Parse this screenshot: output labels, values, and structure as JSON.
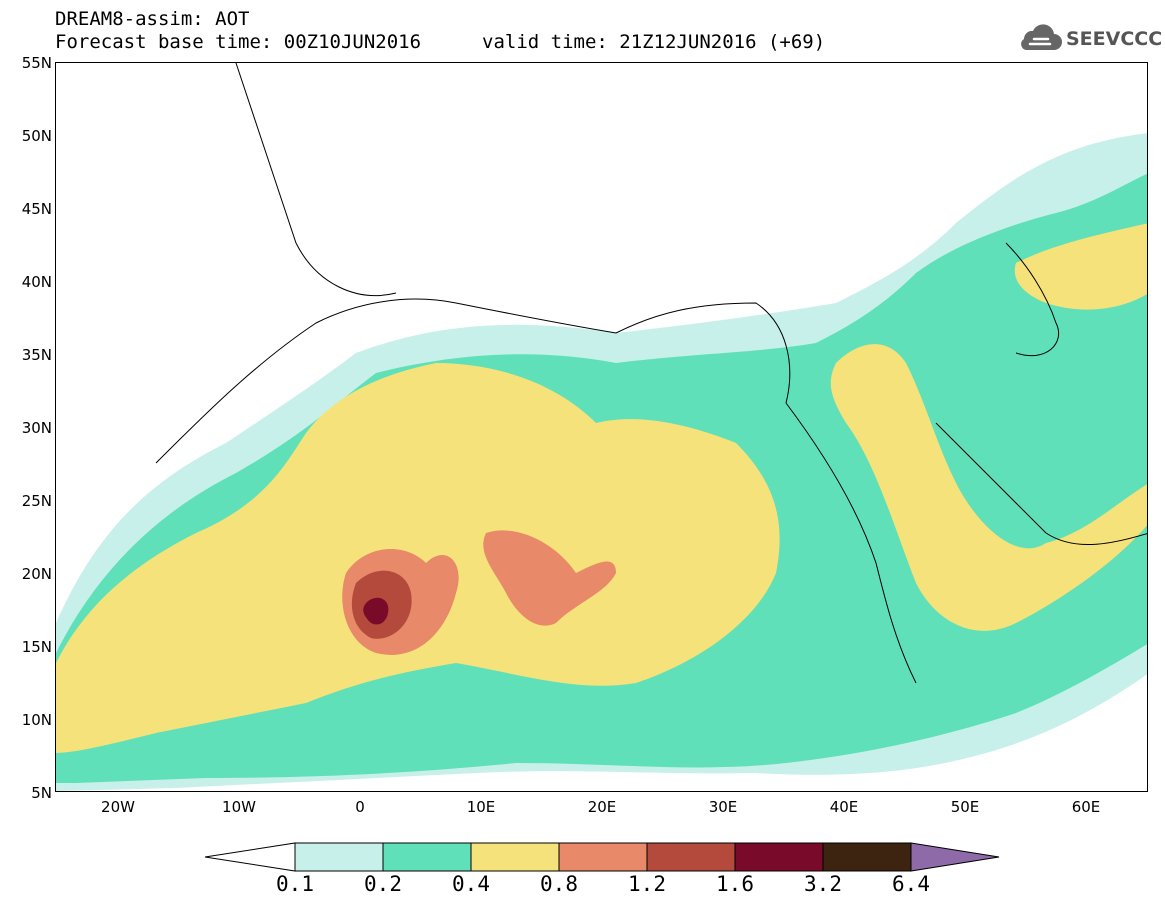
{
  "header": {
    "title": "DREAM8-assim: AOT",
    "base_time": "Forecast base time: 00Z10JUN2016",
    "valid_time": "valid time: 21Z12JUN2016 (+69)"
  },
  "logo": {
    "text": "SEEVCCC",
    "icon": "cloud-icon"
  },
  "map": {
    "lat_labels": [
      "55N",
      "50N",
      "45N",
      "40N",
      "35N",
      "30N",
      "25N",
      "20N",
      "15N",
      "10N",
      "5N"
    ],
    "lon_labels": [
      "20W",
      "10W",
      "0",
      "10E",
      "20E",
      "30E",
      "40E",
      "50E",
      "60E"
    ]
  },
  "colorbar": {
    "levels": [
      "0.1",
      "0.2",
      "0.4",
      "0.8",
      "1.2",
      "1.6",
      "3.2",
      "6.4"
    ],
    "colors": [
      "#ffffff",
      "#c7f0ea",
      "#5fe0b8",
      "#f5e27a",
      "#e8896a",
      "#b34a3c",
      "#7a0a2a",
      "#3d2410",
      "#8e6aa8"
    ]
  }
}
